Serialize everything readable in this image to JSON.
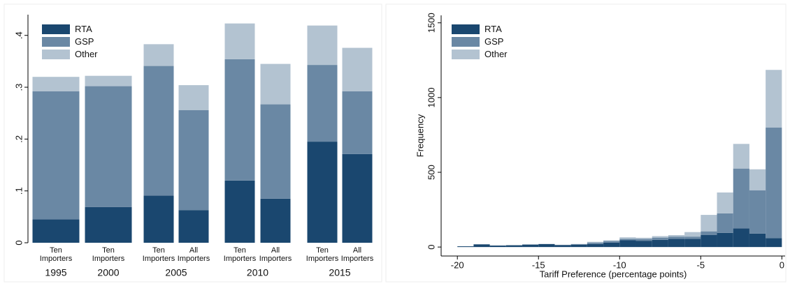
{
  "chart_data": [
    {
      "type": "bar",
      "stacked": true,
      "categories": [
        [
          "1995",
          "Ten Importers"
        ],
        [
          "2000",
          "Ten Importers"
        ],
        [
          "2005",
          "Ten Importers"
        ],
        [
          "2005",
          "All Importers"
        ],
        [
          "2010",
          "Ten Importers"
        ],
        [
          "2010",
          "All Importers"
        ],
        [
          "2015",
          "Ten Importers"
        ],
        [
          "2015",
          "All Importers"
        ]
      ],
      "series": [
        {
          "name": "RTA",
          "color": "#1a476f",
          "values": [
            0.045,
            0.069,
            0.091,
            0.063,
            0.12,
            0.085,
            0.195,
            0.171
          ]
        },
        {
          "name": "GSP",
          "color": "#6a88a4",
          "values": [
            0.247,
            0.233,
            0.25,
            0.193,
            0.234,
            0.182,
            0.148,
            0.121
          ]
        },
        {
          "name": "Other",
          "color": "#b3c3d1",
          "values": [
            0.028,
            0.02,
            0.042,
            0.048,
            0.069,
            0.078,
            0.076,
            0.084
          ]
        }
      ],
      "ylim": [
        0,
        0.44
      ],
      "yticks": [
        0,
        {
          "value": 0.1,
          "label": ".1"
        },
        {
          "value": 0.2,
          "label": ".2"
        },
        {
          "value": 0.3,
          "label": ".3"
        },
        {
          "value": 0.4,
          "label": ".4"
        }
      ],
      "legend": "top-left"
    },
    {
      "type": "histogram",
      "stacked": true,
      "bins": [
        -20,
        -19,
        -18,
        -17,
        -16,
        -15,
        -14,
        -13,
        -12,
        -11,
        -10,
        -9,
        -8,
        -7,
        -6,
        -5,
        -4,
        -3,
        -2,
        -1,
        0
      ],
      "series": [
        {
          "name": "RTA",
          "color": "#1a476f",
          "values": [
            5,
            18,
            10,
            12,
            15,
            20,
            12,
            15,
            20,
            30,
            45,
            42,
            48,
            55,
            55,
            80,
            95,
            125,
            90,
            60
          ]
        },
        {
          "name": "GSP",
          "color": "#6a88a4",
          "values": [
            0,
            0,
            0,
            0,
            3,
            0,
            3,
            5,
            10,
            10,
            10,
            12,
            15,
            15,
            15,
            25,
            130,
            400,
            290,
            740
          ]
        },
        {
          "name": "Other",
          "color": "#b3c3d1",
          "values": [
            0,
            0,
            0,
            0,
            0,
            0,
            0,
            0,
            5,
            5,
            10,
            8,
            10,
            10,
            30,
            110,
            140,
            165,
            140,
            385
          ]
        }
      ],
      "xlabel": "Tariff Preference (percentage points)",
      "ylabel": "Frequency",
      "xlim": [
        -21,
        0.2
      ],
      "xticks": [
        -20,
        -15,
        -10,
        -5,
        0
      ],
      "ylim": [
        -60,
        1550
      ],
      "yticks": [
        0,
        500,
        1000,
        1500
      ],
      "legend": "top-left"
    }
  ]
}
